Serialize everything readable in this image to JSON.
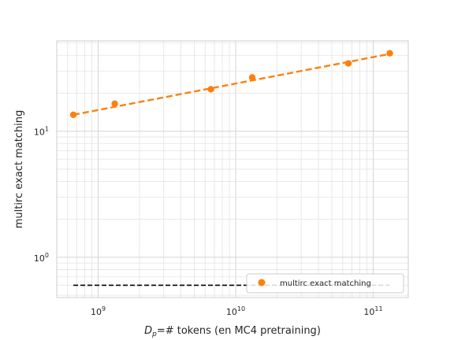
{
  "chart_data": {
    "type": "scatter",
    "xscale": "log",
    "yscale": "log",
    "xlim": [
      500000000.0,
      180000000000.0
    ],
    "ylim": [
      0.48,
      52
    ],
    "grid": true,
    "xlabel_math": "D",
    "xlabel_sub": "p",
    "xlabel_rest": "=# tokens (en MC4 pretraining)",
    "ylabel": "multirc exact matching",
    "xticks": [
      {
        "value": 1000000000.0,
        "base": "10",
        "exp": "9"
      },
      {
        "value": 10000000000.0,
        "base": "10",
        "exp": "10"
      },
      {
        "value": 100000000000.0,
        "base": "10",
        "exp": "11"
      }
    ],
    "yticks": [
      {
        "value": 1,
        "base": "10",
        "exp": "0"
      },
      {
        "value": 10,
        "base": "10",
        "exp": "1"
      }
    ],
    "series": [
      {
        "name": "multirc exact matching",
        "color": "#ff7f0e",
        "marker": "circle",
        "x": [
          660000000.0,
          1320000000.0,
          6600000000.0,
          13200000000.0,
          66000000000.0,
          132000000000.0
        ],
        "y": [
          13.5,
          16.5,
          21.5,
          26.7,
          34.5,
          41.5
        ]
      }
    ],
    "fit_line": {
      "color": "#ff7f0e",
      "style": "dashed",
      "x": [
        660000000.0,
        132000000000.0
      ],
      "y": [
        13.5,
        41.0
      ]
    },
    "baseline": {
      "color": "#000000",
      "style": "dashed",
      "x": [
        660000000.0,
        132000000000.0
      ],
      "y": [
        0.6,
        0.6
      ]
    },
    "legend": {
      "placement": "lower right",
      "entries": [
        "multirc exact matching"
      ]
    }
  }
}
